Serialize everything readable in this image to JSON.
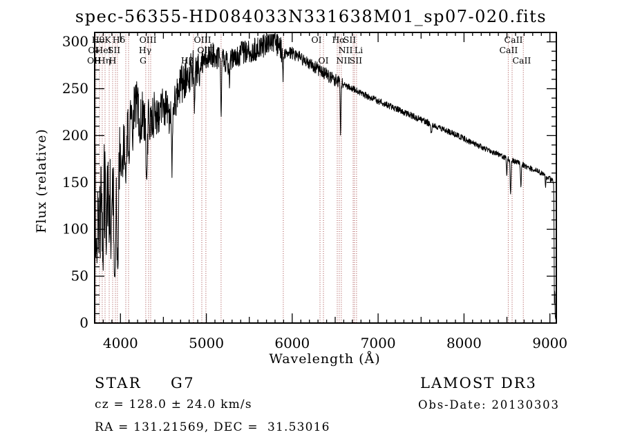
{
  "title": "spec-56355-HD084033N331638M01_sp07-020.fits",
  "annotations": {
    "object_class": "STAR",
    "subclass": "G7",
    "cz": "cz = 128.0 ± 24.0 km/s",
    "radec": "RA = 131.21569, DEC =  31.53016",
    "survey": "LAMOST DR3",
    "obs_date": "Obs-Date: 20130303"
  },
  "chart_data": {
    "type": "line",
    "title": "spec-56355-HD084033N331638M01_sp07-020.fits",
    "xlabel": "Wavelength (Å)",
    "ylabel": "Flux (relative)",
    "xlim": [
      3700,
      9075
    ],
    "ylim": [
      0,
      310
    ],
    "xticks": [
      4000,
      5000,
      6000,
      7000,
      8000,
      9000
    ],
    "yticks": [
      0,
      50,
      100,
      150,
      200,
      250,
      300
    ],
    "grid": false,
    "series_color": "#000000",
    "marker_color": "#a04040",
    "noise_seed": 20130303,
    "envelope": [
      [
        3700,
        95
      ],
      [
        3706,
        150
      ],
      [
        3712,
        95
      ],
      [
        3718,
        135
      ],
      [
        3724,
        170
      ],
      [
        3730,
        105
      ],
      [
        3736,
        155
      ],
      [
        3744,
        120
      ],
      [
        3752,
        165
      ],
      [
        3760,
        130
      ],
      [
        3768,
        110
      ],
      [
        3776,
        155
      ],
      [
        3784,
        130
      ],
      [
        3792,
        108
      ],
      [
        3800,
        148
      ],
      [
        3808,
        165
      ],
      [
        3816,
        125
      ],
      [
        3824,
        150
      ],
      [
        3832,
        170
      ],
      [
        3840,
        150
      ],
      [
        3848,
        160
      ],
      [
        3856,
        138
      ],
      [
        3864,
        118
      ],
      [
        3872,
        145
      ],
      [
        3880,
        152
      ],
      [
        3888,
        132
      ],
      [
        3896,
        150
      ],
      [
        3904,
        158
      ],
      [
        3912,
        148
      ],
      [
        3920,
        128
      ],
      [
        3928,
        100
      ],
      [
        3936,
        92
      ],
      [
        3944,
        112
      ],
      [
        3952,
        128
      ],
      [
        3960,
        108
      ],
      [
        3968,
        115
      ],
      [
        3976,
        138
      ],
      [
        3984,
        155
      ],
      [
        3992,
        162
      ],
      [
        4000,
        168
      ],
      [
        4020,
        182
      ],
      [
        4040,
        192
      ],
      [
        4060,
        196
      ],
      [
        4080,
        204
      ],
      [
        4100,
        210
      ],
      [
        4120,
        220
      ],
      [
        4140,
        230
      ],
      [
        4160,
        228
      ],
      [
        4180,
        232
      ],
      [
        4200,
        230
      ],
      [
        4220,
        222
      ],
      [
        4240,
        218
      ],
      [
        4260,
        225
      ],
      [
        4280,
        214
      ],
      [
        4300,
        200
      ],
      [
        4320,
        214
      ],
      [
        4340,
        228
      ],
      [
        4360,
        222
      ],
      [
        4380,
        230
      ],
      [
        4400,
        226
      ],
      [
        4420,
        222
      ],
      [
        4440,
        220
      ],
      [
        4460,
        224
      ],
      [
        4480,
        227
      ],
      [
        4500,
        230
      ],
      [
        4520,
        231
      ],
      [
        4540,
        228
      ],
      [
        4560,
        225
      ],
      [
        4580,
        222
      ],
      [
        4600,
        220
      ],
      [
        4620,
        231
      ],
      [
        4640,
        237
      ],
      [
        4660,
        242
      ],
      [
        4680,
        248
      ],
      [
        4700,
        253
      ],
      [
        4720,
        256
      ],
      [
        4740,
        259
      ],
      [
        4760,
        262
      ],
      [
        4780,
        266
      ],
      [
        4800,
        268
      ],
      [
        4820,
        270
      ],
      [
        4840,
        271
      ],
      [
        4861,
        272
      ],
      [
        4880,
        274
      ],
      [
        4900,
        276
      ],
      [
        4930,
        278
      ],
      [
        4960,
        280
      ],
      [
        5000,
        283
      ],
      [
        5040,
        285
      ],
      [
        5080,
        286
      ],
      [
        5120,
        284
      ],
      [
        5160,
        281
      ],
      [
        5200,
        279
      ],
      [
        5240,
        277
      ],
      [
        5280,
        280
      ],
      [
        5320,
        283
      ],
      [
        5360,
        286
      ],
      [
        5400,
        288
      ],
      [
        5440,
        289
      ],
      [
        5480,
        290
      ],
      [
        5520,
        289
      ],
      [
        5560,
        291
      ],
      [
        5600,
        293
      ],
      [
        5640,
        295
      ],
      [
        5680,
        297
      ],
      [
        5720,
        300
      ],
      [
        5760,
        302
      ],
      [
        5800,
        300
      ],
      [
        5840,
        295
      ],
      [
        5880,
        290
      ],
      [
        5920,
        288
      ],
      [
        5960,
        289
      ],
      [
        6000,
        288
      ],
      [
        6050,
        286
      ],
      [
        6100,
        283
      ],
      [
        6150,
        280
      ],
      [
        6200,
        277
      ],
      [
        6250,
        274
      ],
      [
        6300,
        271
      ],
      [
        6350,
        268
      ],
      [
        6400,
        265
      ],
      [
        6450,
        262
      ],
      [
        6500,
        259
      ],
      [
        6550,
        257
      ],
      [
        6600,
        255
      ],
      [
        6650,
        252
      ],
      [
        6700,
        250
      ],
      [
        6750,
        248
      ],
      [
        6800,
        245
      ],
      [
        6850,
        243
      ],
      [
        6900,
        241
      ],
      [
        6950,
        239
      ],
      [
        7000,
        237
      ],
      [
        7050,
        235
      ],
      [
        7100,
        233
      ],
      [
        7150,
        231
      ],
      [
        7200,
        229
      ],
      [
        7250,
        227
      ],
      [
        7300,
        225
      ],
      [
        7350,
        223
      ],
      [
        7400,
        221
      ],
      [
        7450,
        219
      ],
      [
        7500,
        217
      ],
      [
        7550,
        215
      ],
      [
        7600,
        213
      ],
      [
        7650,
        211
      ],
      [
        7700,
        209
      ],
      [
        7750,
        207
      ],
      [
        7800,
        205
      ],
      [
        7850,
        203
      ],
      [
        7900,
        201
      ],
      [
        7950,
        199
      ],
      [
        8000,
        197
      ],
      [
        8050,
        194
      ],
      [
        8100,
        192
      ],
      [
        8150,
        190
      ],
      [
        8200,
        188
      ],
      [
        8250,
        186
      ],
      [
        8300,
        184
      ],
      [
        8350,
        182
      ],
      [
        8400,
        180
      ],
      [
        8450,
        178
      ],
      [
        8500,
        176
      ],
      [
        8550,
        174
      ],
      [
        8600,
        172
      ],
      [
        8650,
        170
      ],
      [
        8700,
        168
      ],
      [
        8750,
        166
      ],
      [
        8800,
        164
      ],
      [
        8850,
        162
      ],
      [
        8900,
        160
      ],
      [
        8950,
        156
      ],
      [
        9000,
        154
      ],
      [
        9030,
        152
      ],
      [
        9044,
        148
      ],
      [
        9048,
        110
      ],
      [
        9051,
        30
      ],
      [
        9054,
        8
      ],
      [
        9056,
        60
      ],
      [
        9059,
        15
      ],
      [
        9062,
        6
      ],
      [
        9075,
        5
      ]
    ],
    "noise_segments": [
      [
        3700,
        4000,
        52
      ],
      [
        4000,
        4400,
        28
      ],
      [
        4400,
        4900,
        22
      ],
      [
        4900,
        5900,
        13
      ],
      [
        5900,
        6600,
        7
      ],
      [
        6600,
        7600,
        3.5
      ],
      [
        7600,
        9040,
        3
      ],
      [
        9040,
        9075,
        2
      ]
    ],
    "absorption_lines": [
      [
        3727,
        65,
        8
      ],
      [
        3750,
        75,
        6
      ],
      [
        3798,
        58,
        8
      ],
      [
        3835,
        72,
        8
      ],
      [
        3869,
        85,
        6
      ],
      [
        3889,
        70,
        7
      ],
      [
        3934,
        48,
        9
      ],
      [
        3969,
        58,
        9
      ],
      [
        4026,
        155,
        5
      ],
      [
        4062,
        150,
        7
      ],
      [
        4102,
        170,
        8
      ],
      [
        4144,
        185,
        5
      ],
      [
        4227,
        190,
        5
      ],
      [
        4305,
        152,
        10
      ],
      [
        4340,
        198,
        7
      ],
      [
        4383,
        195,
        6
      ],
      [
        4600,
        158,
        5
      ],
      [
        4861,
        224,
        6
      ],
      [
        4920,
        250,
        5
      ],
      [
        5172,
        217,
        6
      ],
      [
        5270,
        252,
        5
      ],
      [
        5893,
        258,
        6
      ],
      [
        6563,
        202,
        6
      ],
      [
        7620,
        201,
        9
      ],
      [
        8498,
        158,
        6
      ],
      [
        8542,
        136,
        7
      ],
      [
        8662,
        146,
        7
      ],
      [
        8950,
        147,
        5
      ]
    ],
    "line_markers": [
      3716,
      3756,
      3788,
      3821,
      3869,
      3909,
      3941,
      3965,
      4062,
      4094,
      4295,
      4328,
      4352,
      4850,
      4947,
      4995,
      5172,
      5896,
      6323,
      6363,
      6524,
      6548,
      6572,
      6709,
      6725,
      6749,
      8515,
      8560,
      8690
    ],
    "line_labels": [
      {
        "text": "Hθ",
        "row": 1,
        "wl": 3740
      },
      {
        "text": "K",
        "row": 1,
        "wl": 3853
      },
      {
        "text": "Hδ",
        "row": 1,
        "wl": 3982
      },
      {
        "text": "OIII",
        "row": 1,
        "wl": 4320
      },
      {
        "text": "OIII",
        "row": 1,
        "wl": 4955
      },
      {
        "text": "OI",
        "row": 1,
        "wl": 6283
      },
      {
        "text": "Hα",
        "row": 1,
        "wl": 6540
      },
      {
        "text": "SII",
        "row": 1,
        "wl": 6669
      },
      {
        "text": "CaII",
        "row": 1,
        "wl": 8576
      },
      {
        "text": "OI",
        "row": 2,
        "wl": 3684
      },
      {
        "text": "HeI",
        "row": 2,
        "wl": 3805
      },
      {
        "text": "SII",
        "row": 2,
        "wl": 3925
      },
      {
        "text": "Hγ",
        "row": 2,
        "wl": 4287
      },
      {
        "text": "OIII",
        "row": 2,
        "wl": 4995
      },
      {
        "text": "NII",
        "row": 2,
        "wl": 6621
      },
      {
        "text": "Li",
        "row": 2,
        "wl": 6774
      },
      {
        "text": "CaII",
        "row": 2,
        "wl": 8519
      },
      {
        "text": "OII",
        "row": 3,
        "wl": 3692
      },
      {
        "text": "Hη",
        "row": 3,
        "wl": 3813
      },
      {
        "text": "H",
        "row": 3,
        "wl": 3909
      },
      {
        "text": "G",
        "row": 3,
        "wl": 4263
      },
      {
        "text": "Hβ",
        "row": 3,
        "wl": 4778
      },
      {
        "text": "OI",
        "row": 3,
        "wl": 6363
      },
      {
        "text": "NII",
        "row": 3,
        "wl": 6596
      },
      {
        "text": "SII",
        "row": 3,
        "wl": 6741
      },
      {
        "text": "CaII",
        "row": 3,
        "wl": 8672
      }
    ]
  }
}
